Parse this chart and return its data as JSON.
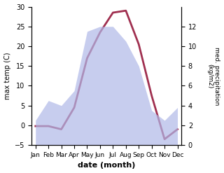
{
  "months": [
    "Jan",
    "Feb",
    "Mar",
    "Apr",
    "May",
    "Jun",
    "Jul",
    "Aug",
    "Sep",
    "Oct",
    "Nov",
    "Dec"
  ],
  "month_positions": [
    0,
    1,
    2,
    3,
    4,
    5,
    6,
    7,
    8,
    9,
    10,
    11
  ],
  "max_temp": [
    -0.2,
    -0.2,
    -1.0,
    4.5,
    17.0,
    23.5,
    28.5,
    29.0,
    20.5,
    7.5,
    -3.5,
    -1.0
  ],
  "med_precip": [
    2.5,
    4.5,
    4.0,
    5.5,
    11.5,
    12.0,
    12.0,
    10.5,
    8.0,
    3.5,
    2.5,
    3.8
  ],
  "temp_ylim": [
    -5,
    30
  ],
  "temp_yticks": [
    -5,
    0,
    5,
    10,
    15,
    20,
    25,
    30
  ],
  "precip_ylim": [
    0,
    14
  ],
  "precip_yticks": [
    0,
    2,
    4,
    6,
    8,
    10,
    12
  ],
  "temp_color": "#a03050",
  "precip_fill_color": "#b0b8e8",
  "xlabel": "date (month)",
  "ylabel_left": "max temp (C)",
  "ylabel_right": "med. precipitation\n(kg/m2)",
  "linewidth": 2.0,
  "figsize": [
    3.2,
    2.47
  ],
  "dpi": 100
}
